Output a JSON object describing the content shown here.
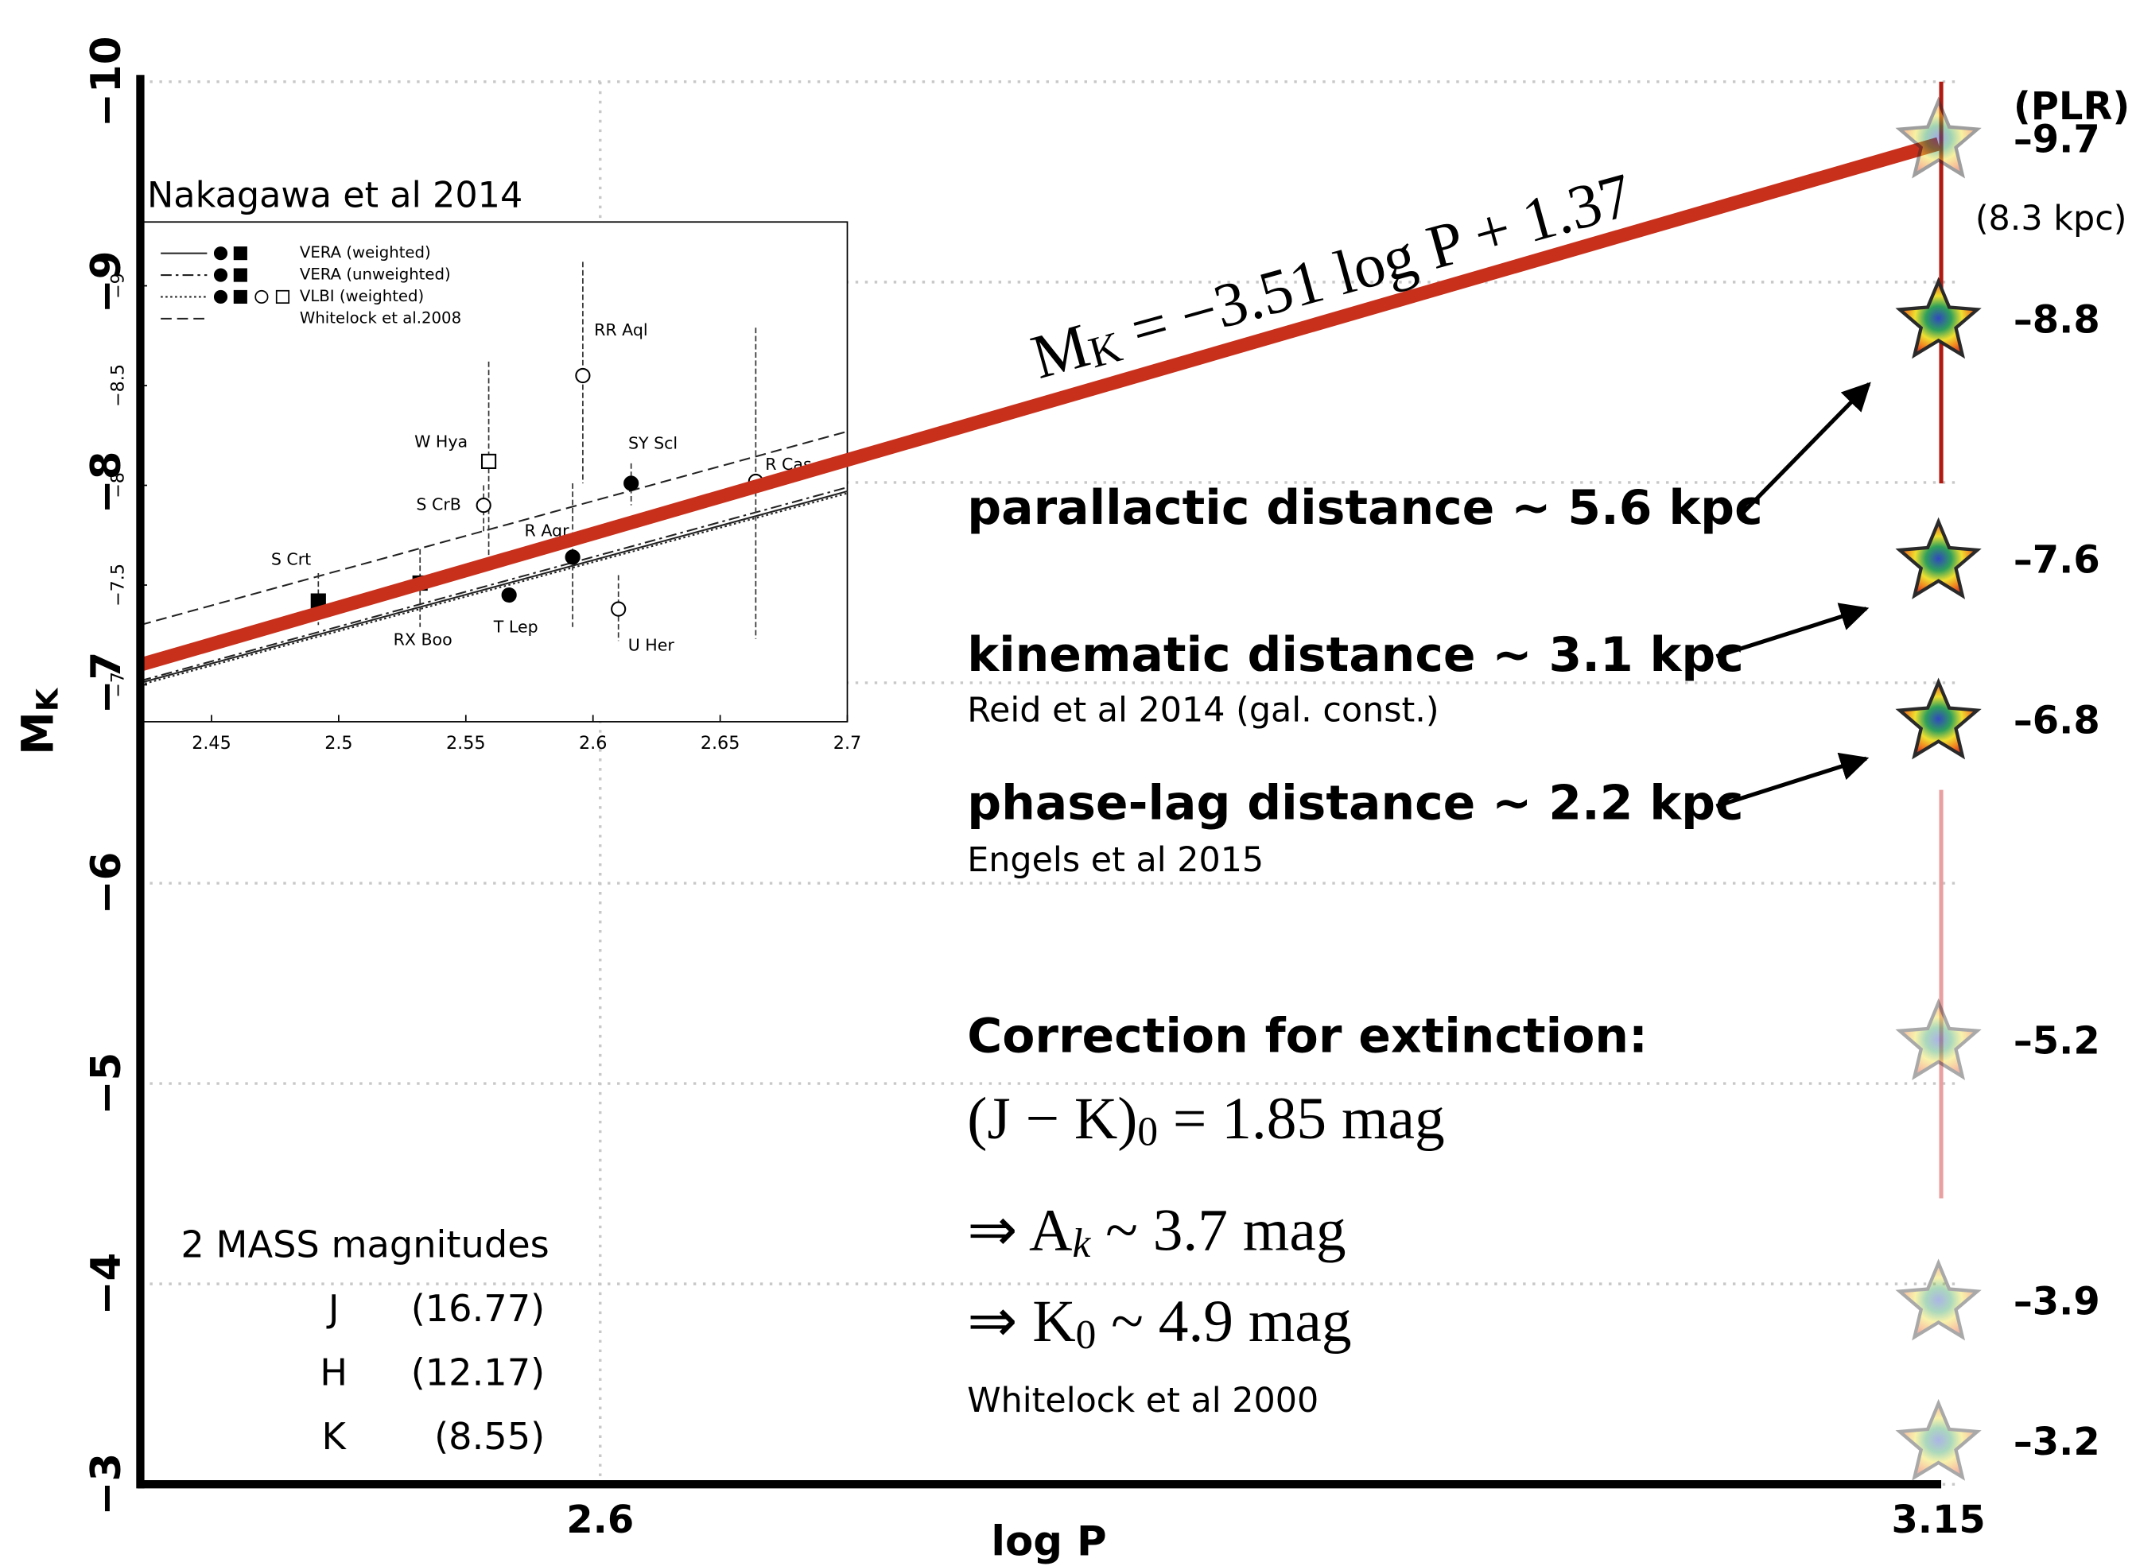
{
  "chart_data": [
    {
      "type": "line",
      "xlabel": "log P",
      "ylabel": {
        "main": "M",
        "sub": "K"
      },
      "xlim": [
        2.411,
        3.15
      ],
      "ylim": [
        -3,
        -10
      ],
      "xticks": [
        2.6,
        3.15
      ],
      "yticks": [
        {
          "value": -10,
          "label": "−10"
        },
        {
          "value": -9,
          "label": "−9"
        },
        {
          "value": -8,
          "label": "−8"
        },
        {
          "value": -7,
          "label": "−7"
        },
        {
          "value": -6,
          "label": "−6"
        },
        {
          "value": -5,
          "label": "−5"
        },
        {
          "value": -4,
          "label": "−4"
        },
        {
          "value": -3,
          "label": "−3"
        }
      ],
      "grid": true,
      "line": {
        "color": "#c8301c",
        "x": [
          2.411,
          3.15
        ],
        "values": [
          -7.09,
          -9.69
        ]
      },
      "equation": {
        "main": "M",
        "sub": "K",
        "rest": " = −3.51 log P + 1.37"
      },
      "stars": {
        "x": [
          3.15,
          3.15,
          3.15,
          3.15,
          3.15,
          3.15,
          3.15
        ],
        "values": [
          -9.7,
          -8.8,
          -7.6,
          -6.8,
          -5.2,
          -3.9,
          -3.2
        ],
        "value_labels": [
          "–9.7",
          "–8.8",
          "–7.6",
          "–6.8",
          "–5.2",
          "–3.9",
          "–3.2"
        ],
        "opacity": [
          0.45,
          1,
          1,
          1,
          0.4,
          0.4,
          0.4
        ],
        "label_colors": [
          "#000000",
          "#000000",
          "#000000",
          "#000000",
          "#999999",
          "#999999",
          "#999999"
        ]
      },
      "annotations": {
        "plr": "(PLR)",
        "plr_distance": "(8.3 kpc)",
        "parallactic": "parallactic distance ~ 5.6 kpc",
        "kinematic": "kinematic distance ~ 3.1 kpc",
        "kinematic_ref": "Reid et al 2014 (gal. const.)",
        "phase_lag": "phase-lag distance ~ 2.2 kpc",
        "phase_lag_ref": "Engels et al 2015",
        "extinction_title": "Correction for extinction:",
        "color_excess": {
          "main": "(J − K)",
          "sub": "0",
          "rest": " = 1.85 mag"
        },
        "ak": {
          "main": "⇒ A",
          "sub": "k",
          "rest": " ~ 3.7 mag"
        },
        "k0": {
          "main": "⇒ K",
          "sub": "0",
          "rest": " ~ 4.9 mag"
        },
        "extinction_ref": "Whitelock et al 2000"
      },
      "mass_table": {
        "title": "2 MASS magnitudes",
        "rows": [
          [
            "J",
            "(16.77)"
          ],
          [
            "H",
            "(12.17)"
          ],
          [
            "K",
            "(8.55)"
          ]
        ]
      }
    },
    {
      "type": "scatter",
      "title": "Nakagawa et al 2014",
      "xlim": [
        2.422,
        2.7
      ],
      "ylim": [
        -6.815,
        -9.32
      ],
      "xticks": [
        2.45,
        2.5,
        2.55,
        2.6,
        2.65,
        2.7
      ],
      "yticks": [
        {
          "value": -9,
          "label": "−9"
        },
        {
          "value": -8.5,
          "label": "−8.5"
        },
        {
          "value": -8,
          "label": "−8"
        },
        {
          "value": -7.5,
          "label": "−7.5"
        },
        {
          "value": -7,
          "label": "−7"
        }
      ],
      "lines": [
        {
          "name": "VERA (weighted)",
          "style": "solid",
          "color": "#222222",
          "x": [
            2.422,
            2.7
          ],
          "values": [
            -7.01,
            -7.97
          ]
        },
        {
          "name": "VERA (unweighted)",
          "style": "dashdot",
          "color": "#222222",
          "x": [
            2.422,
            2.7
          ],
          "values": [
            -7.02,
            -7.99
          ]
        },
        {
          "name": "VLBI (weighted)",
          "style": "dotted",
          "color": "#222222",
          "x": [
            2.422,
            2.7
          ],
          "values": [
            -7.0,
            -7.96
          ]
        },
        {
          "name": "Whitelock et al.2008",
          "style": "dashed",
          "color": "#222222",
          "x": [
            2.422,
            2.7
          ],
          "values": [
            -7.3,
            -8.27
          ]
        }
      ],
      "points": {
        "labels": [
          "S Crt",
          "RX Boo",
          "W Hya",
          "S CrB",
          "T Lep",
          "R Aqr",
          "RR Aql",
          "SY Scl",
          "R Cas",
          "U Her"
        ],
        "markers": [
          "filled-square",
          "filled-square",
          "open-square",
          "open-circle",
          "filled-circle",
          "filled-circle",
          "open-circle",
          "filled-circle",
          "open-circle",
          "open-circle"
        ],
        "x": [
          2.492,
          2.532,
          2.559,
          2.557,
          2.567,
          2.592,
          2.596,
          2.615,
          2.664,
          2.61
        ],
        "values": [
          -7.42,
          -7.51,
          -8.12,
          -7.9,
          -7.45,
          -7.64,
          -8.55,
          -8.01,
          -8.02,
          -7.38
        ],
        "error_low": [
          -7.56,
          -7.68,
          -8.62,
          -8.0,
          null,
          -8.01,
          -9.12,
          -8.11,
          -8.79,
          -7.55
        ],
        "error_high": [
          -7.3,
          -7.29,
          -7.63,
          -7.77,
          null,
          -7.29,
          -8.01,
          -7.9,
          -7.23,
          -7.22
        ]
      }
    }
  ]
}
